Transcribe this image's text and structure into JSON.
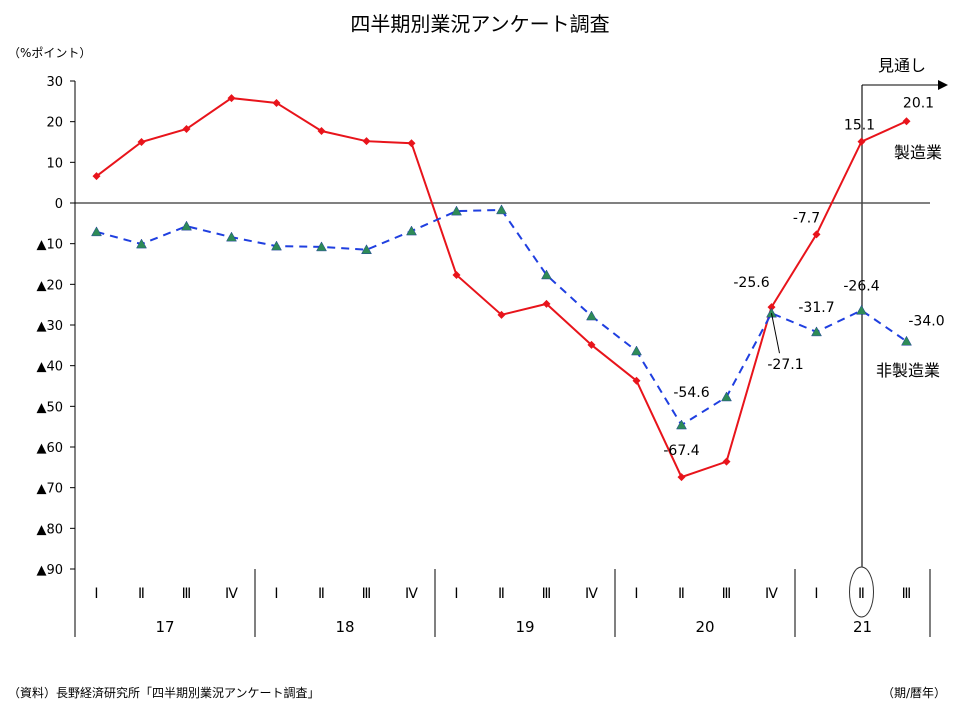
{
  "chart_data": {
    "type": "line",
    "title": "四半期別業況アンケート調査",
    "ylabel": "（%ポイント）",
    "xlabel": "（期/暦年）",
    "source": "（資料）長野経済研究所「四半期別業況アンケート調査」",
    "ylim": [
      -90,
      30
    ],
    "yticks": [
      30,
      20,
      10,
      0,
      -10,
      -20,
      -30,
      -40,
      -50,
      -60,
      -70,
      -80,
      -90
    ],
    "ytick_labels": [
      "30",
      "20",
      "10",
      "0",
      "▲10",
      "▲20",
      "▲30",
      "▲40",
      "▲50",
      "▲60",
      "▲70",
      "▲80",
      "▲90"
    ],
    "quarters": [
      "Ⅰ",
      "Ⅱ",
      "Ⅲ",
      "Ⅳ",
      "Ⅰ",
      "Ⅱ",
      "Ⅲ",
      "Ⅳ",
      "Ⅰ",
      "Ⅱ",
      "Ⅲ",
      "Ⅳ",
      "Ⅰ",
      "Ⅱ",
      "Ⅲ",
      "Ⅳ",
      "Ⅰ",
      "Ⅱ",
      "Ⅲ"
    ],
    "years": [
      {
        "label": "17",
        "quarters": 4
      },
      {
        "label": "18",
        "quarters": 4
      },
      {
        "label": "19",
        "quarters": 4
      },
      {
        "label": "20",
        "quarters": 4
      },
      {
        "label": "21",
        "quarters": 3
      }
    ],
    "highlighted_quarter_index": 17,
    "forecast_label": "見通し",
    "forecast_start_index": 18,
    "series": [
      {
        "name": "製造業",
        "color": "#e8141b",
        "style": "solid",
        "marker": "diamond",
        "values": [
          6.6,
          15.0,
          18.2,
          25.8,
          24.6,
          17.7,
          15.2,
          14.7,
          -17.7,
          -27.5,
          -24.8,
          -34.9,
          -43.7,
          -67.4,
          -63.6,
          -25.6,
          -7.7,
          15.1,
          20.1
        ],
        "data_labels": {
          "13": "-67.4",
          "15": "-25.6",
          "16": "-7.7",
          "17": "15.1",
          "18": "20.1"
        }
      },
      {
        "name": "非製造業",
        "color": "#1f3fe0",
        "marker_color": "#2e8b57",
        "style": "dashed",
        "marker": "triangle",
        "values": [
          -7.1,
          -10.1,
          -5.7,
          -8.4,
          -10.6,
          -10.8,
          -11.5,
          -6.9,
          -2.0,
          -1.7,
          -17.7,
          -27.8,
          -36.4,
          -54.6,
          -47.7,
          -27.1,
          -31.7,
          -26.4,
          -34.0
        ],
        "data_labels": {
          "13": "-54.6",
          "15": "-27.1",
          "16": "-31.7",
          "17": "-26.4",
          "18": "-34.0"
        }
      }
    ],
    "grid": false,
    "legend": "inline-labels"
  }
}
